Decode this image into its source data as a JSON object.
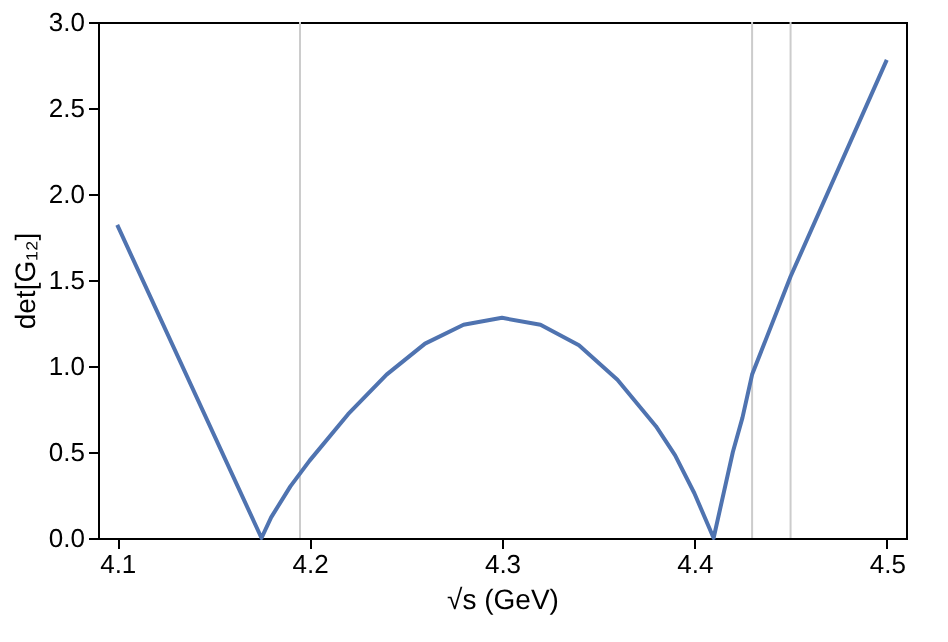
{
  "chart_data": {
    "type": "line",
    "xlabel": "√s (GeV)",
    "ylabel": "det[G₁₂]",
    "series": [
      {
        "color": "#4f73b0",
        "x": [
          4.1,
          4.175,
          4.18,
          4.19,
          4.2,
          4.22,
          4.24,
          4.26,
          4.28,
          4.3,
          4.32,
          4.34,
          4.36,
          4.38,
          4.39,
          4.4,
          4.41,
          4.42,
          4.425,
          4.43,
          4.45,
          4.5
        ],
        "values": [
          1.82,
          0.0,
          0.12,
          0.3,
          0.45,
          0.72,
          0.95,
          1.13,
          1.24,
          1.28,
          1.24,
          1.12,
          0.92,
          0.65,
          0.48,
          0.26,
          0.0,
          0.5,
          0.7,
          0.95,
          1.52,
          2.78
        ]
      }
    ],
    "xlim": [
      4.09,
      4.51
    ],
    "xticks": [
      4.1,
      4.2,
      4.3,
      4.4,
      4.5
    ],
    "ylim": [
      0,
      3
    ],
    "yticks": [
      {
        "value": 0,
        "label": "0.0"
      },
      {
        "value": 0.5,
        "label": "0.5"
      },
      {
        "value": 1,
        "label": "1.0"
      },
      {
        "value": 1.5,
        "label": "1.5"
      },
      {
        "value": 2,
        "label": "2.0"
      },
      {
        "value": 2.5,
        "label": "2.5"
      },
      {
        "value": 3,
        "label": "3.0"
      }
    ],
    "ref_lines": [
      {
        "axis": "x",
        "value": 4.195,
        "color": "#cccccc"
      },
      {
        "axis": "x",
        "value": 4.43,
        "color": "#cccccc"
      },
      {
        "axis": "x",
        "value": 4.45,
        "color": "#cccccc"
      }
    ],
    "grid": false,
    "marker": "none",
    "line_style": "solid"
  }
}
